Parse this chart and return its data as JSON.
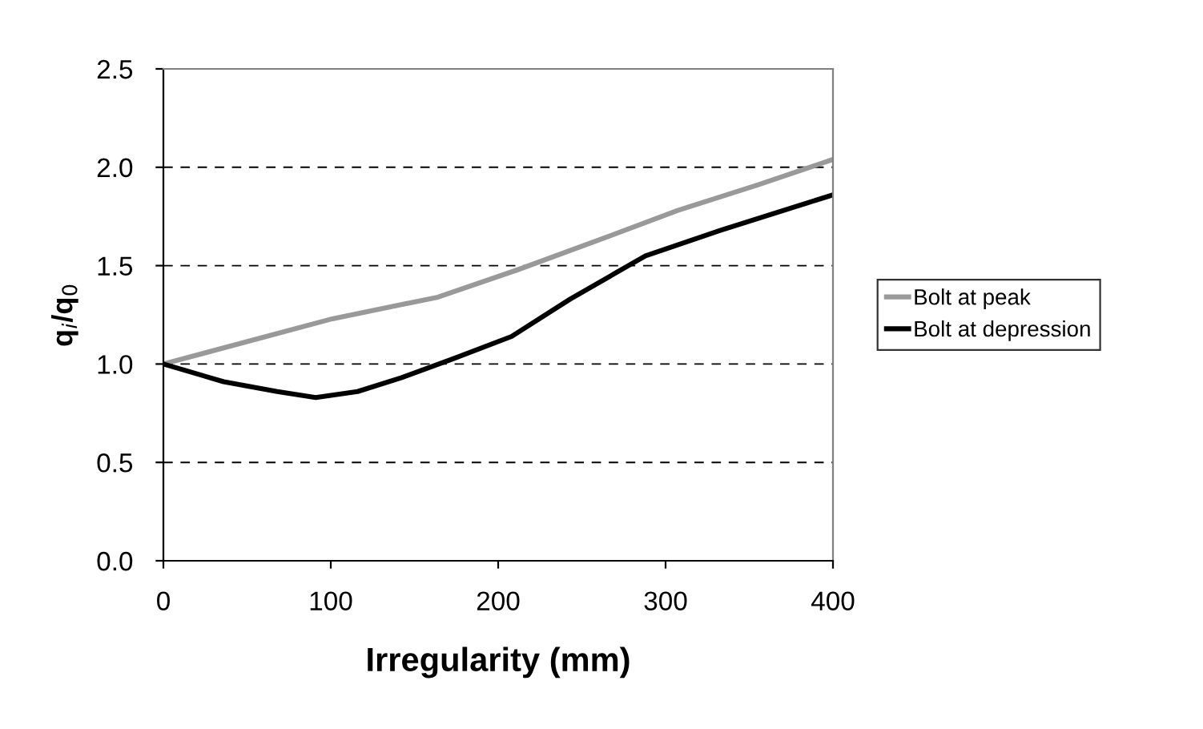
{
  "chart_data": {
    "type": "line",
    "xlabel": "Irregularity (mm)",
    "ylabel": "q$_{i}$/q$_{0}$",
    "x": [
      0,
      36,
      57,
      68,
      91,
      101,
      116,
      142,
      164,
      174,
      208,
      212,
      243,
      260,
      288,
      307,
      333,
      355,
      400
    ],
    "series": [
      {
        "name": "Bolt at peak",
        "color": "#999999",
        "values": [
          1.0,
          null,
          1.13,
          null,
          null,
          1.23,
          null,
          null,
          1.34,
          null,
          null,
          1.48,
          null,
          1.63,
          null,
          1.78,
          null,
          1.91,
          2.04
        ]
      },
      {
        "name": "Bolt at depression",
        "color": "#000000",
        "values": [
          1.0,
          0.91,
          null,
          0.86,
          0.83,
          null,
          0.86,
          0.93,
          null,
          1.03,
          1.14,
          null,
          1.33,
          null,
          1.55,
          null,
          1.68,
          null,
          1.86
        ]
      }
    ],
    "xlim": [
      0,
      400
    ],
    "xticks": [
      0,
      100,
      200,
      300,
      400
    ],
    "ylim": [
      0,
      2.5
    ],
    "yticks": [
      {
        "value": 0,
        "label": "0.0"
      },
      {
        "value": 0.5,
        "label": "0.5"
      },
      {
        "value": 1,
        "label": "1.0"
      },
      {
        "value": 1.5,
        "label": "1.5"
      },
      {
        "value": 2,
        "label": "2.0"
      },
      {
        "value": 2.5,
        "label": "2.5"
      }
    ],
    "grid": "y",
    "legend": "right",
    "marker": "none",
    "line_style": "solid"
  }
}
